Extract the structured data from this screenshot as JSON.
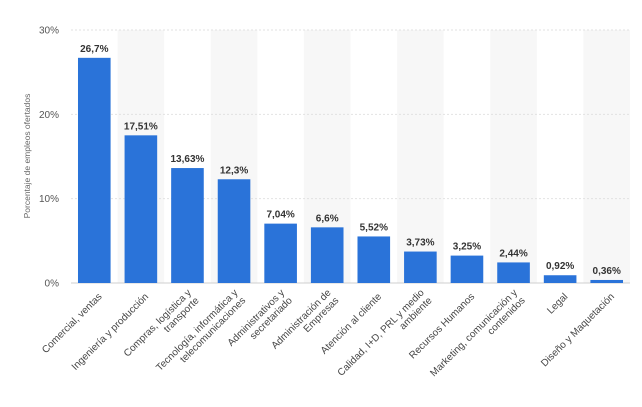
{
  "chart_data": {
    "type": "bar",
    "ylabel": "Porcentaje de empleos ofertados",
    "xlabel": "",
    "ylim": [
      0,
      30
    ],
    "yticks": [
      {
        "value": 0,
        "label": "0%"
      },
      {
        "value": 10,
        "label": "10%"
      },
      {
        "value": 20,
        "label": "20%"
      },
      {
        "value": 30,
        "label": "30%"
      }
    ],
    "grid": true,
    "alternating_column_bands": true,
    "bar_color": "#2A73D9",
    "band_color": "#F7F7F7",
    "categories": [
      [
        "Comercial, ventas"
      ],
      [
        "Ingeniería y producción"
      ],
      [
        "Compras, logística y",
        "transporte"
      ],
      [
        "Tecnología, informática y",
        "telecomunicaciones"
      ],
      [
        "Administrativos y",
        "secretariado"
      ],
      [
        "Administración de",
        "Empresas"
      ],
      [
        "Atención al cliente"
      ],
      [
        "Calidad, I+D, PRL y medio",
        "ambiente"
      ],
      [
        "Recursos Humanos"
      ],
      [
        "Marketing, comunicación y",
        "contenidos"
      ],
      [
        "Legal"
      ],
      [
        "Diseño y Maquetación"
      ]
    ],
    "values": [
      26.7,
      17.51,
      13.63,
      12.3,
      7.04,
      6.6,
      5.52,
      3.73,
      3.25,
      2.44,
      0.92,
      0.36
    ],
    "value_labels": [
      "26,7%",
      "17,51%",
      "13,63%",
      "12,3%",
      "7,04%",
      "6,6%",
      "5,52%",
      "3,73%",
      "3,25%",
      "2,44%",
      "0,92%",
      "0,36%"
    ]
  }
}
